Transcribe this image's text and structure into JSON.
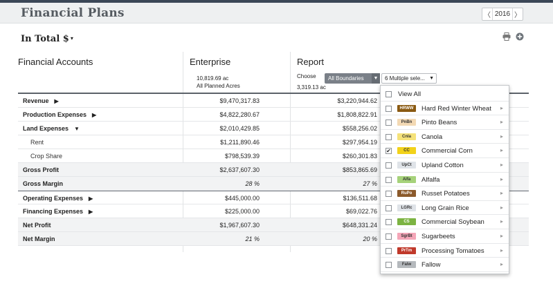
{
  "header": {
    "title": "Financial Plans",
    "year": "2016",
    "prev_icon": "chevron-left-icon",
    "next_icon": "chevron-right-icon"
  },
  "toolbar": {
    "total_label": "In Total $",
    "total_caret": "▾",
    "print_icon": "print-icon",
    "add_icon": "plus-circle-icon"
  },
  "columns": {
    "accounts": "Financial Accounts",
    "enterprise": "Enterprise",
    "report": "Report"
  },
  "enterprise_sub": {
    "acres": "10,819.69 ac",
    "desc": "All Planned Acres"
  },
  "report_sub": {
    "choose": "Choose",
    "boundary": "All Boundaries",
    "multi": "6  Multiple sele...",
    "acres": "3,319.13 ac"
  },
  "rows": [
    {
      "label": "Revenue",
      "tri": "▶",
      "enterprise": "$9,470,317.83",
      "report": "$3,220,944.62"
    },
    {
      "label": "Production Expenses",
      "tri": "▶",
      "enterprise": "$4,822,280.67",
      "report": "$1,808,822.91"
    },
    {
      "label": "Land Expenses",
      "tri": "▼",
      "enterprise": "$2,010,429.85",
      "report": "$558,256.02"
    },
    {
      "label": "Rent",
      "tri": "",
      "enterprise": "$1,211,890.46",
      "report": "$297,954.19"
    },
    {
      "label": "Crop Share",
      "tri": "",
      "enterprise": "$798,539.39",
      "report": "$260,301.83"
    },
    {
      "label": "Gross Profit",
      "tri": "",
      "enterprise": "$2,637,607.30",
      "report": "$853,865.69"
    },
    {
      "label": "Gross Margin",
      "tri": "",
      "enterprise": "28 %",
      "report": "27 %"
    },
    {
      "label": "Operating Expenses",
      "tri": "▶",
      "enterprise": "$445,000.00",
      "report": "$136,511.68"
    },
    {
      "label": "Financing Expenses",
      "tri": "▶",
      "enterprise": "$225,000.00",
      "report": "$69,022.76"
    },
    {
      "label": "Net Profit",
      "tri": "",
      "enterprise": "$1,967,607.30",
      "report": "$648,331.24"
    },
    {
      "label": "Net Margin",
      "tri": "",
      "enterprise": "21 %",
      "report": "20 %"
    }
  ],
  "dropdown": {
    "view_all": "View All",
    "items": [
      {
        "code": "HRWW",
        "name": "Hard Red Winter Wheat",
        "checked": false,
        "color": "#8a5a12",
        "text_color": "#ffffff"
      },
      {
        "code": "PnBn",
        "name": "Pinto Beans",
        "checked": false,
        "color": "#f3d9b4",
        "text_color": "#333333"
      },
      {
        "code": "Cnla",
        "name": "Canola",
        "checked": false,
        "color": "#f5e27a",
        "text_color": "#333333"
      },
      {
        "code": "CC",
        "name": "Commercial Corn",
        "checked": true,
        "color": "#f2d21a",
        "text_color": "#333333"
      },
      {
        "code": "UpCt",
        "name": "Upland Cotton",
        "checked": false,
        "color": "#dfe3e8",
        "text_color": "#333333"
      },
      {
        "code": "Alfa",
        "name": "Alfalfa",
        "checked": false,
        "color": "#a6d27a",
        "text_color": "#333333"
      },
      {
        "code": "RuPo",
        "name": "Russet Potatoes",
        "checked": false,
        "color": "#8b5a2b",
        "text_color": "#ffffff"
      },
      {
        "code": "LGRc",
        "name": "Long Grain Rice",
        "checked": false,
        "color": "#dfe3e8",
        "text_color": "#333333"
      },
      {
        "code": "CS",
        "name": "Commercial Soybean",
        "checked": false,
        "color": "#7cb342",
        "text_color": "#ffffff"
      },
      {
        "code": "SgrBt",
        "name": "Sugarbeets",
        "checked": false,
        "color": "#f4a6b8",
        "text_color": "#333333"
      },
      {
        "code": "PrTm",
        "name": "Processing Tomatoes",
        "checked": false,
        "color": "#c0392b",
        "text_color": "#ffffff"
      },
      {
        "code": "Falw",
        "name": "Fallow",
        "checked": false,
        "color": "#b5b9bd",
        "text_color": "#333333"
      }
    ]
  }
}
